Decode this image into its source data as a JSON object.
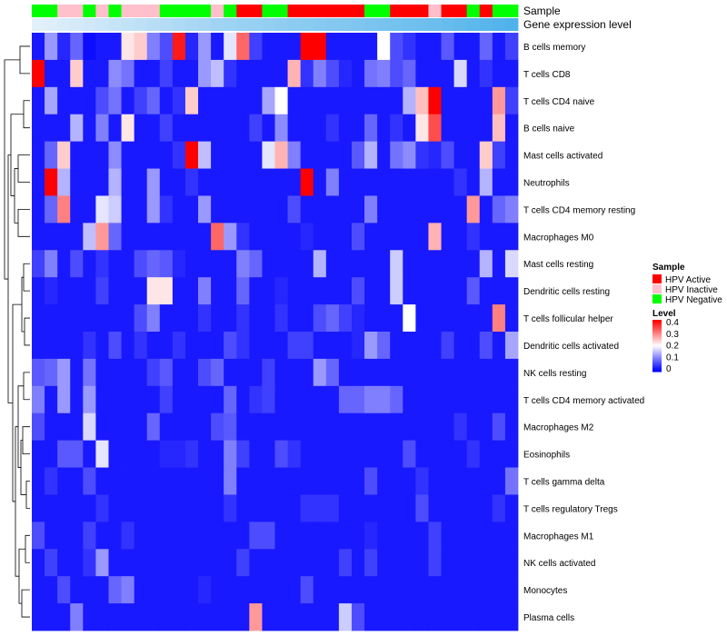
{
  "chart_data": {
    "type": "heatmap",
    "annotation_tracks": [
      {
        "label": "Sample"
      },
      {
        "label": "Gene expression level"
      }
    ],
    "sample_groups": [
      "HPV Negative",
      "HPV Negative",
      "HPV Inactive",
      "HPV Inactive",
      "HPV Negative",
      "HPV Inactive",
      "HPV Negative",
      "HPV Inactive",
      "HPV Inactive",
      "HPV Inactive",
      "HPV Negative",
      "HPV Negative",
      "HPV Negative",
      "HPV Negative",
      "HPV Inactive",
      "HPV Negative",
      "HPV Active",
      "HPV Active",
      "HPV Negative",
      "HPV Negative",
      "HPV Active",
      "HPV Active",
      "HPV Active",
      "HPV Active",
      "HPV Active",
      "HPV Active",
      "HPV Negative",
      "HPV Negative",
      "HPV Active",
      "HPV Active",
      "HPV Active",
      "HPV Inactive",
      "HPV Active",
      "HPV Active",
      "HPV Negative",
      "HPV Active",
      "HPV Negative",
      "HPV Negative"
    ],
    "group_colors": {
      "HPV Active": "#ff0000",
      "HPV Inactive": "#ffc0cb",
      "HPV Negative": "#00ff00"
    },
    "expression_track": [
      0.05,
      0.08,
      0.11,
      0.14,
      0.17,
      0.2,
      0.23,
      0.26,
      0.29,
      0.32,
      0.35,
      0.38,
      0.41,
      0.44,
      0.47,
      0.5,
      0.52,
      0.54,
      0.56,
      0.58,
      0.6,
      0.62,
      0.64,
      0.66,
      0.68,
      0.7,
      0.72,
      0.74,
      0.76,
      0.78,
      0.8,
      0.82,
      0.85,
      0.88,
      0.91,
      0.94,
      0.97,
      1.0
    ],
    "expression_track_colors": [
      "#eaf3fb",
      "#4fb2ea"
    ],
    "rows": [
      "B cells memory",
      "T cells CD8",
      "T cells CD4 naive",
      "B cells naive",
      "Mast cells activated",
      "Neutrophils",
      "T cells CD4 memory resting",
      "Macrophages M0",
      "Mast cells resting",
      "Dendritic cells resting",
      "T cells follicular helper",
      "Dendritic cells activated",
      "NK cells resting",
      "T cells CD4 memory activated",
      "Macrophages M2",
      "Eosinophils",
      "T cells gamma delta",
      "T cells regulatory  Tregs",
      "Macrophages M1",
      "NK cells activated",
      "Monocytes",
      "Plasma cells"
    ],
    "values": [
      [
        0.02,
        0.12,
        0.03,
        0.08,
        0.01,
        0.02,
        0.02,
        0.22,
        0.24,
        0.1,
        0.06,
        0.38,
        0.03,
        0.12,
        0.02,
        0.18,
        0.32,
        0.05,
        0.02,
        0.02,
        0.02,
        0.4,
        0.4,
        0.02,
        0.02,
        0.02,
        0.02,
        0.2,
        0.06,
        0.04,
        0.02,
        0.02,
        0.07,
        0.02,
        0.02,
        0.08,
        0.02,
        0.05
      ],
      [
        0.4,
        0.02,
        0.02,
        0.24,
        0.02,
        0.02,
        0.11,
        0.09,
        0.02,
        0.02,
        0.05,
        0.02,
        0.02,
        0.12,
        0.15,
        0.04,
        0.02,
        0.02,
        0.02,
        0.02,
        0.26,
        0.04,
        0.1,
        0.06,
        0.03,
        0.02,
        0.09,
        0.1,
        0.06,
        0.08,
        0.02,
        0.02,
        0.02,
        0.17,
        0.02,
        0.04,
        0.02,
        0.02
      ],
      [
        0.02,
        0.13,
        0.02,
        0.02,
        0.02,
        0.06,
        0.09,
        0.02,
        0.05,
        0.08,
        0.02,
        0.04,
        0.24,
        0.02,
        0.02,
        0.02,
        0.02,
        0.02,
        0.13,
        0.2,
        0.02,
        0.02,
        0.02,
        0.02,
        0.02,
        0.02,
        0.02,
        0.02,
        0.02,
        0.14,
        0.25,
        0.4,
        0.02,
        0.02,
        0.02,
        0.02,
        0.28,
        0.05
      ],
      [
        0.02,
        0.02,
        0.02,
        0.14,
        0.02,
        0.1,
        0.02,
        0.22,
        0.02,
        0.02,
        0.05,
        0.02,
        0.02,
        0.02,
        0.02,
        0.02,
        0.02,
        0.05,
        0.02,
        0.11,
        0.02,
        0.02,
        0.02,
        0.04,
        0.02,
        0.02,
        0.08,
        0.02,
        0.04,
        0.02,
        0.22,
        0.34,
        0.02,
        0.02,
        0.02,
        0.02,
        0.25,
        0.02
      ],
      [
        0.02,
        0.08,
        0.24,
        0.02,
        0.02,
        0.02,
        0.11,
        0.02,
        0.02,
        0.02,
        0.02,
        0.04,
        0.4,
        0.15,
        0.02,
        0.02,
        0.02,
        0.02,
        0.18,
        0.26,
        0.1,
        0.02,
        0.02,
        0.02,
        0.02,
        0.07,
        0.14,
        0.02,
        0.09,
        0.11,
        0.04,
        0.03,
        0.06,
        0.02,
        0.02,
        0.24,
        0.05,
        0.02
      ],
      [
        0.02,
        0.4,
        0.14,
        0.02,
        0.02,
        0.02,
        0.14,
        0.02,
        0.02,
        0.12,
        0.02,
        0.02,
        0.04,
        0.02,
        0.02,
        0.02,
        0.02,
        0.02,
        0.02,
        0.02,
        0.02,
        0.4,
        0.02,
        0.1,
        0.02,
        0.02,
        0.02,
        0.02,
        0.02,
        0.02,
        0.02,
        0.02,
        0.02,
        0.04,
        0.02,
        0.14,
        0.02,
        0.02
      ],
      [
        0.02,
        0.08,
        0.3,
        0.02,
        0.02,
        0.18,
        0.16,
        0.02,
        0.02,
        0.12,
        0.04,
        0.02,
        0.02,
        0.12,
        0.02,
        0.02,
        0.02,
        0.02,
        0.02,
        0.02,
        0.06,
        0.02,
        0.02,
        0.02,
        0.02,
        0.02,
        0.1,
        0.02,
        0.02,
        0.02,
        0.02,
        0.02,
        0.02,
        0.02,
        0.28,
        0.02,
        0.08,
        0.1
      ],
      [
        0.02,
        0.02,
        0.02,
        0.02,
        0.15,
        0.28,
        0.08,
        0.02,
        0.02,
        0.02,
        0.02,
        0.02,
        0.02,
        0.02,
        0.32,
        0.12,
        0.04,
        0.02,
        0.02,
        0.02,
        0.02,
        0.03,
        0.02,
        0.02,
        0.02,
        0.06,
        0.02,
        0.02,
        0.02,
        0.02,
        0.02,
        0.26,
        0.02,
        0.02,
        0.04,
        0.02,
        0.02,
        0.02
      ],
      [
        0.05,
        0.1,
        0.02,
        0.06,
        0.02,
        0.04,
        0.02,
        0.02,
        0.06,
        0.08,
        0.07,
        0.03,
        0.02,
        0.02,
        0.02,
        0.02,
        0.1,
        0.08,
        0.02,
        0.02,
        0.02,
        0.02,
        0.14,
        0.02,
        0.02,
        0.02,
        0.02,
        0.02,
        0.16,
        0.02,
        0.02,
        0.02,
        0.02,
        0.02,
        0.02,
        0.14,
        0.02,
        0.17
      ],
      [
        0.02,
        0.03,
        0.02,
        0.02,
        0.02,
        0.05,
        0.02,
        0.02,
        0.02,
        0.22,
        0.22,
        0.02,
        0.02,
        0.1,
        0.02,
        0.02,
        0.08,
        0.02,
        0.02,
        0.03,
        0.02,
        0.02,
        0.02,
        0.02,
        0.02,
        0.06,
        0.02,
        0.02,
        0.16,
        0.02,
        0.02,
        0.02,
        0.02,
        0.02,
        0.07,
        0.02,
        0.02,
        0.02
      ],
      [
        0.02,
        0.02,
        0.02,
        0.02,
        0.02,
        0.02,
        0.02,
        0.02,
        0.06,
        0.1,
        0.02,
        0.02,
        0.02,
        0.04,
        0.02,
        0.02,
        0.04,
        0.02,
        0.02,
        0.04,
        0.02,
        0.02,
        0.06,
        0.08,
        0.05,
        0.03,
        0.02,
        0.02,
        0.02,
        0.2,
        0.02,
        0.02,
        0.02,
        0.02,
        0.02,
        0.02,
        0.3,
        0.02
      ],
      [
        0.02,
        0.02,
        0.02,
        0.02,
        0.04,
        0.02,
        0.06,
        0.02,
        0.04,
        0.02,
        0.02,
        0.04,
        0.02,
        0.02,
        0.02,
        0.06,
        0.04,
        0.02,
        0.02,
        0.02,
        0.05,
        0.05,
        0.02,
        0.02,
        0.02,
        0.03,
        0.12,
        0.08,
        0.02,
        0.02,
        0.02,
        0.02,
        0.05,
        0.02,
        0.02,
        0.06,
        0.02,
        0.13
      ],
      [
        0.07,
        0.08,
        0.12,
        0.02,
        0.09,
        0.02,
        0.02,
        0.02,
        0.02,
        0.05,
        0.07,
        0.02,
        0.02,
        0.06,
        0.08,
        0.02,
        0.02,
        0.02,
        0.05,
        0.02,
        0.02,
        0.02,
        0.12,
        0.08,
        0.02,
        0.02,
        0.02,
        0.02,
        0.02,
        0.02,
        0.02,
        0.02,
        0.02,
        0.02,
        0.02,
        0.02,
        0.02,
        0.02
      ],
      [
        0.1,
        0.02,
        0.12,
        0.02,
        0.12,
        0.02,
        0.02,
        0.02,
        0.02,
        0.02,
        0.05,
        0.02,
        0.02,
        0.02,
        0.02,
        0.08,
        0.02,
        0.04,
        0.05,
        0.02,
        0.02,
        0.02,
        0.02,
        0.02,
        0.08,
        0.08,
        0.1,
        0.1,
        0.08,
        0.02,
        0.02,
        0.02,
        0.02,
        0.02,
        0.02,
        0.02,
        0.02,
        0.02
      ],
      [
        0.06,
        0.02,
        0.02,
        0.02,
        0.17,
        0.02,
        0.02,
        0.02,
        0.02,
        0.08,
        0.02,
        0.02,
        0.02,
        0.02,
        0.06,
        0.07,
        0.02,
        0.02,
        0.02,
        0.02,
        0.02,
        0.02,
        0.02,
        0.02,
        0.02,
        0.02,
        0.02,
        0.02,
        0.02,
        0.02,
        0.02,
        0.02,
        0.02,
        0.04,
        0.02,
        0.02,
        0.06,
        0.02
      ],
      [
        0.02,
        0.02,
        0.07,
        0.07,
        0.02,
        0.18,
        0.02,
        0.02,
        0.02,
        0.02,
        0.03,
        0.03,
        0.04,
        0.02,
        0.02,
        0.1,
        0.05,
        0.02,
        0.02,
        0.06,
        0.04,
        0.02,
        0.02,
        0.02,
        0.02,
        0.02,
        0.02,
        0.02,
        0.02,
        0.06,
        0.02,
        0.02,
        0.02,
        0.02,
        0.04,
        0.02,
        0.02,
        0.02
      ],
      [
        0.02,
        0.04,
        0.02,
        0.02,
        0.06,
        0.02,
        0.02,
        0.02,
        0.02,
        0.02,
        0.02,
        0.02,
        0.02,
        0.02,
        0.02,
        0.1,
        0.02,
        0.02,
        0.02,
        0.02,
        0.02,
        0.02,
        0.02,
        0.02,
        0.02,
        0.02,
        0.06,
        0.02,
        0.02,
        0.02,
        0.04,
        0.02,
        0.02,
        0.02,
        0.02,
        0.02,
        0.02,
        0.09
      ],
      [
        0.02,
        0.02,
        0.02,
        0.02,
        0.02,
        0.04,
        0.02,
        0.02,
        0.02,
        0.02,
        0.02,
        0.02,
        0.02,
        0.02,
        0.02,
        0.04,
        0.02,
        0.02,
        0.02,
        0.02,
        0.02,
        0.04,
        0.04,
        0.04,
        0.02,
        0.02,
        0.02,
        0.02,
        0.02,
        0.02,
        0.06,
        0.02,
        0.02,
        0.02,
        0.02,
        0.02,
        0.04,
        0.02
      ],
      [
        0.06,
        0.02,
        0.02,
        0.02,
        0.05,
        0.02,
        0.02,
        0.04,
        0.02,
        0.02,
        0.02,
        0.02,
        0.02,
        0.02,
        0.02,
        0.02,
        0.02,
        0.06,
        0.06,
        0.02,
        0.02,
        0.02,
        0.02,
        0.02,
        0.02,
        0.02,
        0.03,
        0.02,
        0.02,
        0.02,
        0.02,
        0.05,
        0.02,
        0.02,
        0.02,
        0.02,
        0.02,
        0.02
      ],
      [
        0.02,
        0.05,
        0.02,
        0.02,
        0.04,
        0.12,
        0.02,
        0.02,
        0.02,
        0.02,
        0.02,
        0.02,
        0.02,
        0.02,
        0.02,
        0.02,
        0.05,
        0.02,
        0.02,
        0.02,
        0.02,
        0.02,
        0.02,
        0.02,
        0.05,
        0.02,
        0.05,
        0.02,
        0.02,
        0.02,
        0.02,
        0.05,
        0.02,
        0.02,
        0.02,
        0.02,
        0.02,
        0.02
      ],
      [
        0.02,
        0.02,
        0.06,
        0.02,
        0.02,
        0.02,
        0.08,
        0.1,
        0.02,
        0.02,
        0.02,
        0.02,
        0.02,
        0.03,
        0.02,
        0.02,
        0.02,
        0.02,
        0.02,
        0.02,
        0.02,
        0.06,
        0.02,
        0.02,
        0.02,
        0.02,
        0.02,
        0.02,
        0.02,
        0.02,
        0.02,
        0.02,
        0.02,
        0.02,
        0.02,
        0.02,
        0.02,
        0.02
      ],
      [
        0.02,
        0.02,
        0.02,
        0.1,
        0.02,
        0.02,
        0.02,
        0.02,
        0.02,
        0.02,
        0.02,
        0.02,
        0.02,
        0.02,
        0.02,
        0.02,
        0.02,
        0.28,
        0.02,
        0.02,
        0.02,
        0.02,
        0.02,
        0.02,
        0.16,
        0.06,
        0.02,
        0.02,
        0.02,
        0.02,
        0.02,
        0.02,
        0.02,
        0.02,
        0.02,
        0.02,
        0.02,
        0.02
      ]
    ],
    "scale": {
      "min": 0,
      "max": 0.4,
      "colors": [
        "#0000ff",
        "#ffffff",
        "#ff0000"
      ]
    },
    "legend": {
      "sample": {
        "title": "Sample",
        "entries": [
          "HPV Active",
          "HPV Inactive",
          "HPV Negative"
        ]
      },
      "level": {
        "title": "Level",
        "ticks": [
          "0.4",
          "0.3",
          "0.2",
          "0.1",
          "0"
        ]
      }
    },
    "legend_position": "right",
    "row_dendrogram": true
  }
}
